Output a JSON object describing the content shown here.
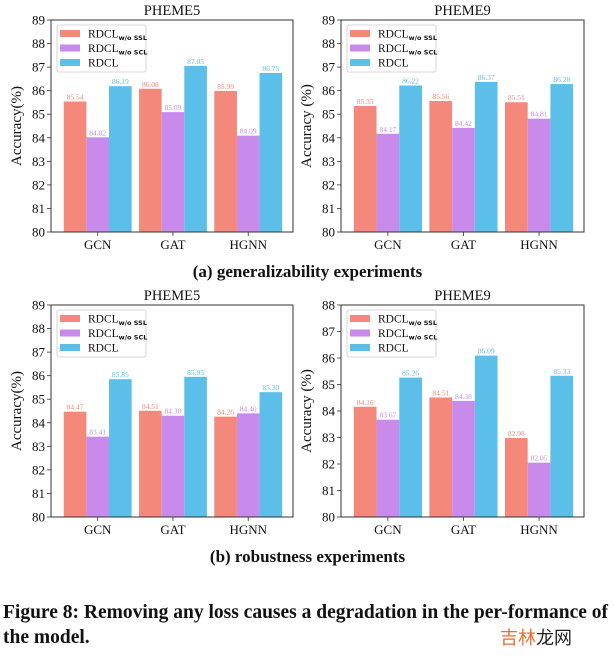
{
  "colors": {
    "without_ssl": "#F4897B",
    "without_scl": "#C98BEB",
    "rdcl": "#5BBFEA"
  },
  "chart_data": [
    {
      "type": "bar",
      "panel": "a",
      "title": "PHEME5",
      "ylabel": "Accuracy(%)",
      "ylim": [
        80,
        89
      ],
      "yticks": [
        80,
        81,
        82,
        83,
        84,
        85,
        86,
        87,
        88,
        89
      ],
      "categories": [
        "GCN",
        "GAT",
        "HGNN"
      ],
      "legend": "top-left",
      "series": [
        {
          "name": "RDCL",
          "sub": "w/o SSL",
          "values": [
            85.54,
            86.08,
            85.99
          ],
          "labels": [
            "85.54",
            "86.08",
            "85.99"
          ]
        },
        {
          "name": "RDCL",
          "sub": "w/o SCL",
          "values": [
            84.02,
            85.09,
            84.09
          ],
          "labels": [
            "84.02",
            "85.09",
            "84.09"
          ]
        },
        {
          "name": "RDCL",
          "sub": "",
          "values": [
            86.19,
            87.05,
            86.75
          ],
          "labels": [
            "86.19",
            "87.05",
            "86.75"
          ]
        }
      ]
    },
    {
      "type": "bar",
      "panel": "a",
      "title": "PHEME9",
      "ylabel": "Accuracy (%)",
      "ylim": [
        80,
        89
      ],
      "yticks": [
        80,
        81,
        82,
        83,
        84,
        85,
        86,
        87,
        88,
        89
      ],
      "categories": [
        "GCN",
        "GAT",
        "HGNN"
      ],
      "legend": "top-left",
      "series": [
        {
          "name": "RDCL",
          "sub": "w/o SSL",
          "values": [
            85.35,
            85.56,
            85.51
          ],
          "labels": [
            "85.35",
            "85.56",
            "85.51"
          ]
        },
        {
          "name": "RDCL",
          "sub": "w/o SCL",
          "values": [
            84.17,
            84.42,
            84.81
          ],
          "labels": [
            "84.17",
            "84.42",
            "84.81"
          ]
        },
        {
          "name": "RDCL",
          "sub": "",
          "values": [
            86.22,
            86.37,
            86.28
          ],
          "labels": [
            "86.22",
            "86.37",
            "86.28"
          ]
        }
      ]
    },
    {
      "type": "bar",
      "panel": "b",
      "title": "PHEME5",
      "ylabel": "Accuracy(%)",
      "ylim": [
        80,
        89
      ],
      "yticks": [
        80,
        81,
        82,
        83,
        84,
        85,
        86,
        87,
        88,
        89
      ],
      "categories": [
        "GCN",
        "GAT",
        "HGNN"
      ],
      "legend": "top-left",
      "series": [
        {
          "name": "RDCL",
          "sub": "w/o SSL",
          "values": [
            84.47,
            84.51,
            84.26
          ],
          "labels": [
            "84.47",
            "84.51",
            "84.26"
          ]
        },
        {
          "name": "RDCL",
          "sub": "w/o SCL",
          "values": [
            83.41,
            84.3,
            84.4
          ],
          "labels": [
            "83.41",
            "84.30",
            "84.40"
          ]
        },
        {
          "name": "RDCL",
          "sub": "",
          "values": [
            85.85,
            85.95,
            85.3
          ],
          "labels": [
            "85.85",
            "85.95",
            "85.30"
          ]
        }
      ]
    },
    {
      "type": "bar",
      "panel": "b",
      "title": "PHEME9",
      "ylabel": "Accuracy (%)",
      "ylim": [
        80,
        88
      ],
      "yticks": [
        80,
        81,
        82,
        83,
        84,
        85,
        86,
        87,
        88
      ],
      "categories": [
        "GCN",
        "GAT",
        "HGNN"
      ],
      "legend": "top-left",
      "series": [
        {
          "name": "RDCL",
          "sub": "w/o SSL",
          "values": [
            84.16,
            84.51,
            82.98
          ],
          "labels": [
            "84.16",
            "84.51",
            "82.98"
          ]
        },
        {
          "name": "RDCL",
          "sub": "w/o SCL",
          "values": [
            83.67,
            84.38,
            82.05
          ],
          "labels": [
            "83.67",
            "84.38",
            "82.05"
          ]
        },
        {
          "name": "RDCL",
          "sub": "",
          "values": [
            85.26,
            86.09,
            85.33
          ],
          "labels": [
            "85.26",
            "86.09",
            "85.33"
          ]
        }
      ]
    }
  ],
  "captions": {
    "a": "(a) generalizability experiments",
    "b": "(b) robustness experiments",
    "figure": "Figure 8: Removing any loss causes a degradation in the per-formance of the model."
  },
  "watermark": {
    "part1": "吉林",
    "part2": "龙网"
  }
}
